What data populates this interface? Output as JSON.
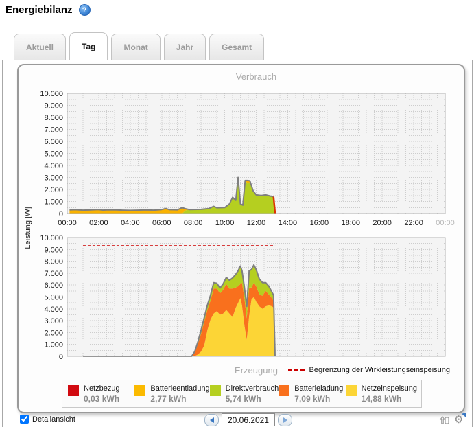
{
  "header": {
    "title": "Energiebilanz",
    "help_glyph": "?"
  },
  "tabs": {
    "active": "Tag",
    "items": [
      {
        "label": "Aktuell"
      },
      {
        "label": "Tag"
      },
      {
        "label": "Monat"
      },
      {
        "label": "Jahr"
      },
      {
        "label": "Gesamt"
      }
    ]
  },
  "chart_data": [
    {
      "id": "verbrauch",
      "type": "area",
      "title": "Verbrauch",
      "ylabel": "Leistung [W]",
      "xlim": [
        0,
        24
      ],
      "ylim": [
        0,
        10000
      ],
      "grid": true,
      "bg": "#f4f4f4",
      "outline_color": "#7f7f7f",
      "end_edge_color": "#dd3300",
      "y_ticks": [
        "10.000",
        "9.000",
        "8.000",
        "7.000",
        "6.000",
        "5.000",
        "4.000",
        "3.000",
        "2.000",
        "1.000",
        "0"
      ],
      "x_ticks": [
        {
          "label": "00:00",
          "hour": 0
        },
        {
          "label": "02:00",
          "hour": 2
        },
        {
          "label": "04:00",
          "hour": 4
        },
        {
          "label": "06:00",
          "hour": 6
        },
        {
          "label": "08:00",
          "hour": 8
        },
        {
          "label": "10:00",
          "hour": 10
        },
        {
          "label": "12:00",
          "hour": 12
        },
        {
          "label": "14:00",
          "hour": 14
        },
        {
          "label": "16:00",
          "hour": 16
        },
        {
          "label": "18:00",
          "hour": 18
        },
        {
          "label": "20:00",
          "hour": 20
        },
        {
          "label": "22:00",
          "hour": 22
        },
        {
          "label": "00:00",
          "hour": 24,
          "muted": true
        }
      ],
      "x": [
        0.15,
        0.5,
        1,
        1.5,
        2,
        2.25,
        2.5,
        3,
        3.5,
        4,
        4.5,
        5,
        5.5,
        6,
        6.25,
        6.5,
        7,
        7.3,
        7.5,
        7.75,
        8,
        8.5,
        9,
        9.3,
        9.5,
        10,
        10.3,
        10.5,
        10.7,
        10.85,
        11,
        11.15,
        11.3,
        11.45,
        11.6,
        11.8,
        12,
        12.3,
        12.6,
        12.9,
        13.1,
        13.2
      ],
      "series": [
        {
          "name": "Direktverbrauch",
          "color": "#b5cf20",
          "values": [
            0,
            0,
            0,
            0,
            0,
            0,
            0,
            0,
            0,
            0,
            0,
            0,
            0,
            0,
            0,
            0,
            0,
            0,
            250,
            330,
            340,
            350,
            420,
            600,
            480,
            500,
            800,
            1350,
            1100,
            3000,
            800,
            700,
            2750,
            2500,
            2600,
            1900,
            1550,
            1500,
            1550,
            1450,
            1400,
            0
          ]
        },
        {
          "name": "Batterieentladung",
          "color": "#f9b200",
          "values": [
            300,
            320,
            280,
            300,
            330,
            280,
            300,
            310,
            280,
            260,
            280,
            300,
            280,
            330,
            420,
            320,
            310,
            500,
            150,
            0,
            0,
            0,
            0,
            0,
            0,
            0,
            0,
            0,
            0,
            0,
            0,
            0,
            0,
            250,
            120,
            0,
            0,
            0,
            0,
            0,
            0,
            0
          ]
        }
      ]
    },
    {
      "id": "erzeugung",
      "type": "area",
      "title": "Erzeugung",
      "xlim": [
        0,
        24
      ],
      "ylim": [
        0,
        10000
      ],
      "grid": true,
      "bg": "#f4f4f4",
      "outline_color": "#7f7f7f",
      "y_ticks": [
        "10.000",
        "9.000",
        "8.000",
        "7.000",
        "6.000",
        "5.000",
        "4.000",
        "3.000",
        "2.000",
        "1.000",
        "0"
      ],
      "limit_line": {
        "value": 9300,
        "x_start": 1,
        "x_end": 13.2,
        "color": "#cc0000",
        "label": "Begrenzung der Wirkleistungseinspeisung"
      },
      "x": [
        1,
        7.9,
        8.1,
        8.3,
        8.5,
        8.7,
        8.9,
        9.1,
        9.3,
        9.5,
        9.7,
        9.9,
        10.1,
        10.3,
        10.5,
        10.7,
        10.85,
        11,
        11.1,
        11.25,
        11.4,
        11.55,
        11.7,
        11.85,
        12,
        12.2,
        12.4,
        12.6,
        12.8,
        13,
        13.1,
        13.2
      ],
      "series": [
        {
          "name": "Netzeinspeisung",
          "color": "#fcd536",
          "values": [
            0,
            0,
            30,
            150,
            400,
            900,
            2200,
            3100,
            3600,
            3800,
            3500,
            3600,
            3900,
            3600,
            3300,
            4100,
            4500,
            4900,
            4300,
            2600,
            1400,
            3400,
            4800,
            5000,
            4600,
            4200,
            4000,
            4200,
            4300,
            4200,
            4100,
            0
          ]
        },
        {
          "name": "Batterieladung",
          "color": "#f9701d",
          "values": [
            0,
            0,
            300,
            900,
            1500,
            2000,
            1700,
            1600,
            2100,
            1900,
            1800,
            2000,
            2200,
            2100,
            2400,
            1700,
            1400,
            1200,
            1900,
            2300,
            1800,
            2400,
            1000,
            1200,
            1300,
            1000,
            1100,
            1300,
            900,
            700,
            600,
            0
          ]
        },
        {
          "name": "Direktverbrauch",
          "color": "#b5cf20",
          "values": [
            0,
            0,
            80,
            200,
            300,
            350,
            400,
            450,
            500,
            450,
            450,
            500,
            550,
            700,
            900,
            1100,
            1300,
            1500,
            1000,
            900,
            1000,
            1400,
            1500,
            1500,
            1400,
            1300,
            1100,
            700,
            700,
            500,
            450,
            0
          ]
        }
      ]
    }
  ],
  "legend": {
    "items": [
      {
        "label": "Netzbezug",
        "value": "0,03 kWh",
        "color": "#d10a10"
      },
      {
        "label": "Batterieentladung",
        "value": "2,77 kWh",
        "color": "#fbba00"
      },
      {
        "label": "Direktverbrauch",
        "value": "5,74 kWh",
        "color": "#b5cf20"
      },
      {
        "label": "Batterieladung",
        "value": "7,09 kWh",
        "color": "#f9701d"
      },
      {
        "label": "Netzeinspeisung",
        "value": "14,88 kWh",
        "color": "#fcd536"
      }
    ]
  },
  "footer": {
    "detail_label": "Detailansicht",
    "detail_checked": true,
    "date_value": "20.06.2021"
  }
}
